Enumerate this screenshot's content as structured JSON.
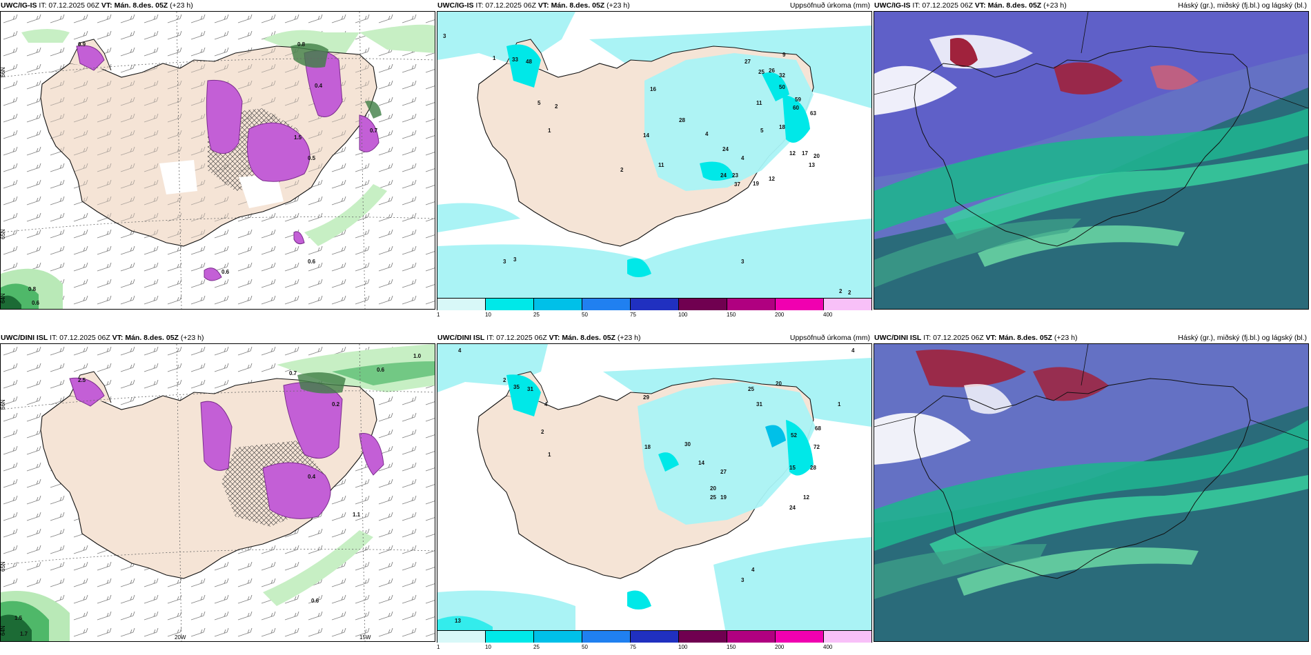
{
  "rows": [
    {
      "model": "UWC/IG-IS",
      "init_time": "IT: 07.12.2025 06Z",
      "valid_time": "VT: Mán. 8.des. 05Z",
      "lead": "(+23 h)"
    },
    {
      "model": "UWC/DINI ISL",
      "init_time": "IT: 07.12.2025 06Z",
      "valid_time": "VT: Mán. 8.des. 05Z",
      "lead": "(+23 h)"
    }
  ],
  "precip_panel": {
    "right_title": "Uppsöfnuð úrkoma (mm)"
  },
  "cloud_panel": {
    "right_title": "Háský (gr.), miðský (fj.bl.) og lágský (bl.)"
  },
  "left_axis": {
    "lon_labels": [
      "20W",
      "15W"
    ],
    "lat_labels": [
      "66N",
      "65N",
      "64N"
    ]
  },
  "colorbar": {
    "labels": [
      "1",
      "10",
      "25",
      "50",
      "75",
      "100",
      "150",
      "200",
      "400"
    ],
    "colors": [
      "#d8f8f8",
      "#00e8e8",
      "#00c0e8",
      "#2080f0",
      "#2030c0",
      "#700050",
      "#b00080",
      "#f000b0",
      "#f8c0f8"
    ]
  },
  "colors": {
    "land": "#f5e4d6",
    "sea_precip": "#aaf3f5",
    "cloud_sea": "#2a6b7a",
    "frame": "#000000"
  },
  "left_values_top": [
    "0.9",
    "0.8",
    "0.4",
    "1.5",
    "0.5",
    "0.7",
    "0.6",
    "0.6",
    "0.8",
    "0.6"
  ],
  "left_values_bottom": [
    "2.5",
    "0.7",
    "0.6",
    "1.0",
    "0.4",
    "0.2",
    "1.1",
    "0.6",
    "1.5",
    "1.7"
  ],
  "precip_values_top": [
    "3",
    "1",
    "33",
    "48",
    "5",
    "2",
    "1",
    "27",
    "25",
    "26",
    "9",
    "32",
    "50",
    "59",
    "60",
    "63",
    "11",
    "18",
    "5",
    "13",
    "24",
    "12",
    "17",
    "20",
    "16",
    "14",
    "28",
    "24",
    "23",
    "37",
    "19",
    "12",
    "4",
    "2",
    "11",
    "4",
    "3",
    "3",
    "3",
    "2",
    "2"
  ],
  "precip_values_bottom": [
    "4",
    "2",
    "35",
    "31",
    "4",
    "2",
    "1",
    "25",
    "29",
    "31",
    "20",
    "52",
    "68",
    "72",
    "15",
    "18",
    "30",
    "27",
    "14",
    "20",
    "25",
    "19",
    "24",
    "12",
    "28",
    "13",
    "4",
    "3",
    "1",
    "4"
  ]
}
